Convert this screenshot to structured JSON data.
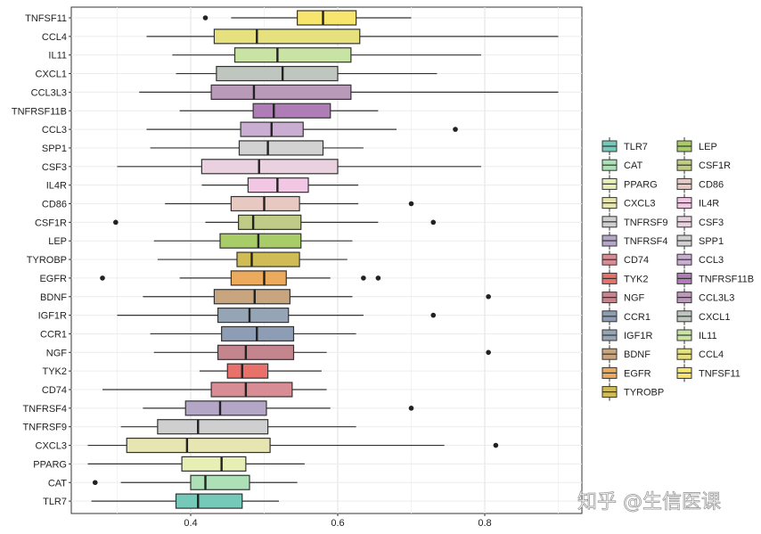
{
  "watermark": "知乎 @生信医课",
  "chart_data": {
    "type": "boxplot",
    "orientation": "horizontal",
    "grid": true,
    "legend_position": "right",
    "xlim": [
      0.24,
      0.92
    ],
    "x_ticks": [
      0.4,
      0.6,
      0.8
    ],
    "x_tick_labels": [
      "0.4",
      "0.6",
      "0.8"
    ],
    "categories": [
      "TNFSF11",
      "CCL4",
      "IL11",
      "CXCL1",
      "CCL3L3",
      "TNFRSF11B",
      "CCL3",
      "SPP1",
      "CSF3",
      "IL4R",
      "CD86",
      "CSF1R",
      "LEP",
      "TYROBP",
      "EGFR",
      "BDNF",
      "IGF1R",
      "CCR1",
      "NGF",
      "TYK2",
      "CD74",
      "TNFRSF4",
      "TNFRSF9",
      "CXCL3",
      "PPARG",
      "CAT",
      "TLR7"
    ],
    "boxes": [
      {
        "gene": "TNFSF11",
        "whisker_low": 0.455,
        "q1": 0.545,
        "median": 0.58,
        "q3": 0.625,
        "whisker_high": 0.7,
        "outliers": [
          0.42
        ],
        "color": "#F7E56E"
      },
      {
        "gene": "CCL4",
        "whisker_low": 0.34,
        "q1": 0.432,
        "median": 0.49,
        "q3": 0.63,
        "whisker_high": 0.9,
        "outliers": [],
        "color": "#E6E07D"
      },
      {
        "gene": "IL11",
        "whisker_low": 0.375,
        "q1": 0.46,
        "median": 0.518,
        "q3": 0.618,
        "whisker_high": 0.795,
        "outliers": [],
        "color": "#C9E3A5"
      },
      {
        "gene": "CXCL1",
        "whisker_low": 0.38,
        "q1": 0.435,
        "median": 0.525,
        "q3": 0.6,
        "whisker_high": 0.735,
        "outliers": [],
        "color": "#BFC6BF"
      },
      {
        "gene": "CCL3L3",
        "whisker_low": 0.33,
        "q1": 0.428,
        "median": 0.486,
        "q3": 0.618,
        "whisker_high": 0.9,
        "outliers": [],
        "color": "#B99AB8"
      },
      {
        "gene": "TNFRSF11B",
        "whisker_low": 0.385,
        "q1": 0.485,
        "median": 0.513,
        "q3": 0.59,
        "whisker_high": 0.655,
        "outliers": [],
        "color": "#B07CB8"
      },
      {
        "gene": "CCL3",
        "whisker_low": 0.34,
        "q1": 0.468,
        "median": 0.51,
        "q3": 0.553,
        "whisker_high": 0.68,
        "outliers": [
          0.76
        ],
        "color": "#C9AED1"
      },
      {
        "gene": "SPP1",
        "whisker_low": 0.345,
        "q1": 0.466,
        "median": 0.505,
        "q3": 0.58,
        "whisker_high": 0.635,
        "outliers": [],
        "color": "#D2D2D2"
      },
      {
        "gene": "CSF3",
        "whisker_low": 0.3,
        "q1": 0.415,
        "median": 0.493,
        "q3": 0.6,
        "whisker_high": 0.795,
        "outliers": [],
        "color": "#EAD1DF"
      },
      {
        "gene": "IL4R",
        "whisker_low": 0.415,
        "q1": 0.478,
        "median": 0.518,
        "q3": 0.56,
        "whisker_high": 0.628,
        "outliers": [],
        "color": "#F2C7E4"
      },
      {
        "gene": "CD86",
        "whisker_low": 0.365,
        "q1": 0.455,
        "median": 0.5,
        "q3": 0.548,
        "whisker_high": 0.628,
        "outliers": [
          0.7
        ],
        "color": "#E8C9C1"
      },
      {
        "gene": "CSF1R",
        "whisker_low": 0.42,
        "q1": 0.465,
        "median": 0.485,
        "q3": 0.55,
        "whisker_high": 0.655,
        "outliers": [
          0.298,
          0.73
        ],
        "color": "#BFCB86"
      },
      {
        "gene": "LEP",
        "whisker_low": 0.35,
        "q1": 0.44,
        "median": 0.492,
        "q3": 0.55,
        "whisker_high": 0.62,
        "outliers": [],
        "color": "#A7CC68"
      },
      {
        "gene": "TYROBP",
        "whisker_low": 0.355,
        "q1": 0.463,
        "median": 0.483,
        "q3": 0.548,
        "whisker_high": 0.613,
        "outliers": [],
        "color": "#D0BC55"
      },
      {
        "gene": "EGFR",
        "whisker_low": 0.385,
        "q1": 0.455,
        "median": 0.5,
        "q3": 0.53,
        "whisker_high": 0.59,
        "outliers": [
          0.28,
          0.635,
          0.655
        ],
        "color": "#EBAA5C"
      },
      {
        "gene": "BDNF",
        "whisker_low": 0.335,
        "q1": 0.432,
        "median": 0.487,
        "q3": 0.535,
        "whisker_high": 0.62,
        "outliers": [
          0.805
        ],
        "color": "#C9A57F"
      },
      {
        "gene": "IGF1R",
        "whisker_low": 0.3,
        "q1": 0.437,
        "median": 0.48,
        "q3": 0.533,
        "whisker_high": 0.635,
        "outliers": [
          0.73
        ],
        "color": "#95A5B5"
      },
      {
        "gene": "CCR1",
        "whisker_low": 0.345,
        "q1": 0.442,
        "median": 0.49,
        "q3": 0.54,
        "whisker_high": 0.625,
        "outliers": [],
        "color": "#8D9DB5"
      },
      {
        "gene": "NGF",
        "whisker_low": 0.35,
        "q1": 0.437,
        "median": 0.475,
        "q3": 0.54,
        "whisker_high": 0.585,
        "outliers": [
          0.805
        ],
        "color": "#C4858E"
      },
      {
        "gene": "TYK2",
        "whisker_low": 0.412,
        "q1": 0.45,
        "median": 0.47,
        "q3": 0.505,
        "whisker_high": 0.578,
        "outliers": [],
        "color": "#E8726B"
      },
      {
        "gene": "CD74",
        "whisker_low": 0.28,
        "q1": 0.428,
        "median": 0.475,
        "q3": 0.538,
        "whisker_high": 0.585,
        "outliers": [],
        "color": "#D88D94"
      },
      {
        "gene": "TNFRSF4",
        "whisker_low": 0.335,
        "q1": 0.393,
        "median": 0.44,
        "q3": 0.503,
        "whisker_high": 0.59,
        "outliers": [
          0.7
        ],
        "color": "#B3A6C6"
      },
      {
        "gene": "TNFRSF9",
        "whisker_low": 0.305,
        "q1": 0.355,
        "median": 0.41,
        "q3": 0.505,
        "whisker_high": 0.625,
        "outliers": [],
        "color": "#CFCFCF"
      },
      {
        "gene": "CXCL3",
        "whisker_low": 0.26,
        "q1": 0.313,
        "median": 0.395,
        "q3": 0.508,
        "whisker_high": 0.745,
        "outliers": [
          0.815
        ],
        "color": "#E7E6B2"
      },
      {
        "gene": "PPARG",
        "whisker_low": 0.26,
        "q1": 0.388,
        "median": 0.442,
        "q3": 0.475,
        "whisker_high": 0.555,
        "outliers": [],
        "color": "#E8EFB5"
      },
      {
        "gene": "CAT",
        "whisker_low": 0.305,
        "q1": 0.4,
        "median": 0.42,
        "q3": 0.48,
        "whisker_high": 0.545,
        "outliers": [
          0.27
        ],
        "color": "#ADE0B7"
      },
      {
        "gene": "TLR7",
        "whisker_low": 0.265,
        "q1": 0.38,
        "median": 0.41,
        "q3": 0.47,
        "whisker_high": 0.52,
        "outliers": [],
        "color": "#74C9B9"
      }
    ],
    "legend": [
      {
        "label": "TLR7",
        "color": "#74C9B9"
      },
      {
        "label": "CAT",
        "color": "#ADE0B7"
      },
      {
        "label": "PPARG",
        "color": "#E8EFB5"
      },
      {
        "label": "CXCL3",
        "color": "#E7E6B2"
      },
      {
        "label": "TNFRSF9",
        "color": "#CFCFCF"
      },
      {
        "label": "TNFRSF4",
        "color": "#B3A6C6"
      },
      {
        "label": "CD74",
        "color": "#D88D94"
      },
      {
        "label": "TYK2",
        "color": "#E8726B"
      },
      {
        "label": "NGF",
        "color": "#C4858E"
      },
      {
        "label": "CCR1",
        "color": "#8D9DB5"
      },
      {
        "label": "IGF1R",
        "color": "#95A5B5"
      },
      {
        "label": "BDNF",
        "color": "#C9A57F"
      },
      {
        "label": "EGFR",
        "color": "#EBAA5C"
      },
      {
        "label": "TYROBP",
        "color": "#D0BC55"
      },
      {
        "label": "LEP",
        "color": "#A7CC68"
      },
      {
        "label": "CSF1R",
        "color": "#BFCB86"
      },
      {
        "label": "CD86",
        "color": "#E8C9C1"
      },
      {
        "label": "IL4R",
        "color": "#F2C7E4"
      },
      {
        "label": "CSF3",
        "color": "#EAD1DF"
      },
      {
        "label": "SPP1",
        "color": "#D2D2D2"
      },
      {
        "label": "CCL3",
        "color": "#C9AED1"
      },
      {
        "label": "TNFRSF11B",
        "color": "#B07CB8"
      },
      {
        "label": "CCL3L3",
        "color": "#B99AB8"
      },
      {
        "label": "CXCL1",
        "color": "#BFC6BF"
      },
      {
        "label": "IL11",
        "color": "#C9E3A5"
      },
      {
        "label": "CCL4",
        "color": "#E6E07D"
      },
      {
        "label": "TNFSF11",
        "color": "#F7E56E"
      }
    ]
  }
}
